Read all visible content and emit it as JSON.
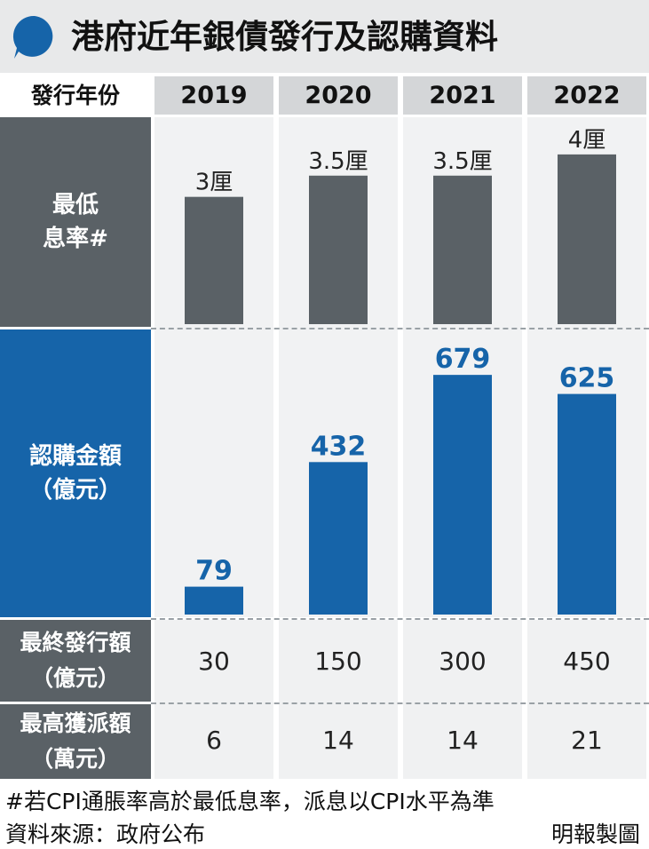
{
  "title": "港府近年銀債發行及認購資料",
  "header_label": "發行年份",
  "years": [
    "2019",
    "2020",
    "2021",
    "2022"
  ],
  "rows": {
    "rate_label": [
      "最低",
      "息率#"
    ],
    "subscription_label": [
      "認購金額",
      "（億元）"
    ],
    "final_label": [
      "最終發行額",
      "（億元）"
    ],
    "max_label": [
      "最高獲派額",
      "（萬元）"
    ]
  },
  "chart_data": [
    {
      "type": "bar",
      "categories": [
        "2019",
        "2020",
        "2021",
        "2022"
      ],
      "values": [
        3,
        3.5,
        3.5,
        4
      ],
      "data_labels": [
        "3厘",
        "3.5厘",
        "3.5厘",
        "4厘"
      ],
      "ylim": [
        0,
        4.5
      ],
      "color": "#5a6166"
    },
    {
      "type": "bar",
      "categories": [
        "2019",
        "2020",
        "2021",
        "2022"
      ],
      "values": [
        79,
        432,
        679,
        625
      ],
      "data_labels": [
        "79",
        "432",
        "679",
        "625"
      ],
      "ylim": [
        0,
        780
      ],
      "color": "#1664a9"
    },
    {
      "type": "table",
      "columns": [
        "2019",
        "2020",
        "2021",
        "2022"
      ],
      "final_issue": [
        "30",
        "150",
        "300",
        "450"
      ],
      "max_allotment": [
        "6",
        "14",
        "14",
        "21"
      ]
    }
  ],
  "footnote": "#若CPI通脹率高於最低息率，派息以CPI水平為準",
  "source": "資料來源：政府公布",
  "credit": "明報製圖",
  "colors": {
    "grey": "#5a6166",
    "blue": "#1664a9",
    "title_bg": "#e8e9ea"
  },
  "icons": [
    "speech-bubble-icon"
  ]
}
